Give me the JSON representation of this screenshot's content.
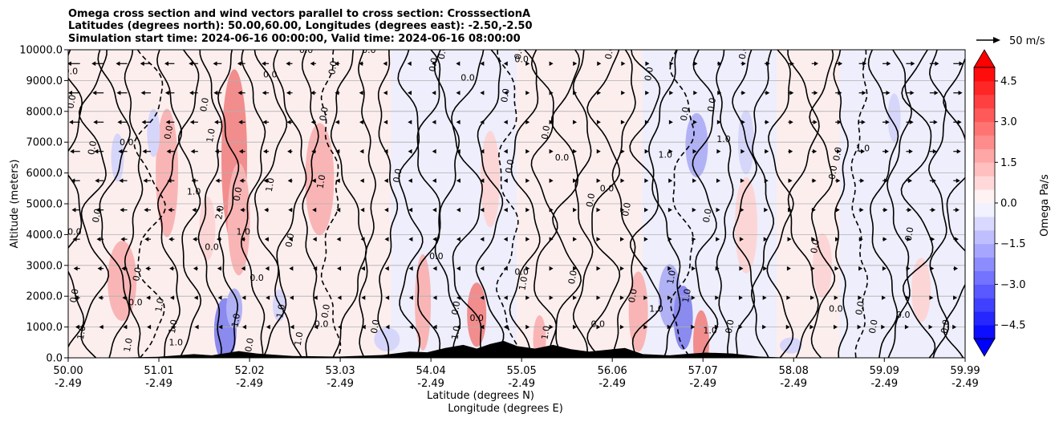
{
  "chart_data": {
    "type": "heatmap",
    "title_lines": [
      "Omega cross section and wind vectors parallel to cross section: CrosssectionA",
      "Latitudes (degrees north): 50.00,60.00, Longitudes (degrees east): -2.50,-2.50",
      "Simulation start time: 2024-06-16 00:00:00, Valid time: 2024-06-16 08:00:00"
    ],
    "ylabel": "Altitude (meters)",
    "xlabel": "Latitude (degrees N)",
    "xlabel2": "Longitude (degrees E)",
    "ylim": [
      0,
      10000
    ],
    "xlim": [
      50.0,
      59.99
    ],
    "y_ticks": [
      {
        "value": 0,
        "label": "0.0"
      },
      {
        "value": 1000,
        "label": "1000.0"
      },
      {
        "value": 2000,
        "label": "2000.0"
      },
      {
        "value": 3000,
        "label": "3000.0"
      },
      {
        "value": 4000,
        "label": "4000.0"
      },
      {
        "value": 5000,
        "label": "5000.0"
      },
      {
        "value": 6000,
        "label": "6000.0"
      },
      {
        "value": 7000,
        "label": "7000.0"
      },
      {
        "value": 8000,
        "label": "8000.0"
      },
      {
        "value": 9000,
        "label": "9000.0"
      },
      {
        "value": 10000,
        "label": "10000.0"
      }
    ],
    "x_ticks": [
      {
        "value": 50.0,
        "lat": "50.00",
        "lon": "-2.49"
      },
      {
        "value": 51.01,
        "lat": "51.01",
        "lon": "-2.49"
      },
      {
        "value": 52.02,
        "lat": "52.02",
        "lon": "-2.49"
      },
      {
        "value": 53.03,
        "lat": "53.03",
        "lon": "-2.49"
      },
      {
        "value": 54.04,
        "lat": "54.04",
        "lon": "-2.49"
      },
      {
        "value": 55.05,
        "lat": "55.05",
        "lon": "-2.49"
      },
      {
        "value": 56.06,
        "lat": "56.06",
        "lon": "-2.49"
      },
      {
        "value": 57.07,
        "lat": "57.07",
        "lon": "-2.49"
      },
      {
        "value": 58.08,
        "lat": "58.08",
        "lon": "-2.49"
      },
      {
        "value": 59.09,
        "lat": "59.09",
        "lon": "-2.49"
      },
      {
        "value": 59.99,
        "lat": "59.99",
        "lon": "-2.49"
      }
    ],
    "grid": "horizontal",
    "colorbar": {
      "label": "Omega Pa/s",
      "range": [
        -5.0,
        5.0
      ],
      "ticks": [
        {
          "value": 4.5,
          "label": "4.5"
        },
        {
          "value": 3.0,
          "label": "3.0"
        },
        {
          "value": 1.5,
          "label": "1.5"
        },
        {
          "value": 0.0,
          "label": "0.0"
        },
        {
          "value": -1.5,
          "label": "−1.5"
        },
        {
          "value": -3.0,
          "label": "−3.0"
        },
        {
          "value": -4.5,
          "label": "−4.5"
        }
      ],
      "levels": 20,
      "colormap": "bwr",
      "extend": "both"
    },
    "quiver_key": {
      "label": "50 m/s",
      "speed": 50
    },
    "contour_labels": [
      {
        "text": "0.0",
        "x": 50.03,
        "y": 9200
      },
      {
        "text": "0.0",
        "x": 50.07,
        "y": 8300
      },
      {
        "text": "0.0",
        "x": 50.3,
        "y": 6800
      },
      {
        "text": "0.0",
        "x": 50.07,
        "y": 4000
      },
      {
        "text": "0.0",
        "x": 50.1,
        "y": 2000
      },
      {
        "text": "1.0",
        "x": 50.18,
        "y": 800
      },
      {
        "text": "0.0",
        "x": 50.65,
        "y": 6900
      },
      {
        "text": "0.0",
        "x": 50.35,
        "y": 4600
      },
      {
        "text": "0.0",
        "x": 50.8,
        "y": 2700
      },
      {
        "text": "0.0",
        "x": 50.75,
        "y": 1700
      },
      {
        "text": "1.0",
        "x": 50.7,
        "y": 400
      },
      {
        "text": "0.0",
        "x": 51.15,
        "y": 7300
      },
      {
        "text": "1.0",
        "x": 51.4,
        "y": 5300
      },
      {
        "text": "1.0",
        "x": 51.05,
        "y": 1700
      },
      {
        "text": "1.0",
        "x": 51.2,
        "y": 1000
      },
      {
        "text": "1.0",
        "x": 51.2,
        "y": 400
      },
      {
        "text": "0.0",
        "x": 51.55,
        "y": 8200
      },
      {
        "text": "1.0",
        "x": 51.62,
        "y": 7200
      },
      {
        "text": "0.0",
        "x": 51.6,
        "y": 3500
      },
      {
        "text": "2.0",
        "x": 51.72,
        "y": 4700
      },
      {
        "text": "0.0",
        "x": 51.92,
        "y": 5300
      },
      {
        "text": "1.0",
        "x": 51.95,
        "y": 4000
      },
      {
        "text": "1.0",
        "x": 51.9,
        "y": 1200
      },
      {
        "text": "0.0",
        "x": 52.05,
        "y": 400
      },
      {
        "text": "0.0",
        "x": 52.25,
        "y": 9100
      },
      {
        "text": "1.0",
        "x": 52.28,
        "y": 5600
      },
      {
        "text": "0.0",
        "x": 52.5,
        "y": 3800
      },
      {
        "text": "0.0",
        "x": 52.1,
        "y": 2500
      },
      {
        "text": "1.0",
        "x": 52.4,
        "y": 1500
      },
      {
        "text": "1.0",
        "x": 52.6,
        "y": 600
      },
      {
        "text": "0.0",
        "x": 52.65,
        "y": 9900
      },
      {
        "text": "0.0",
        "x": 52.88,
        "y": 7900
      },
      {
        "text": "1.0",
        "x": 52.85,
        "y": 5700
      },
      {
        "text": "0.0",
        "x": 52.82,
        "y": 1000
      },
      {
        "text": "0.0",
        "x": 52.9,
        "y": 1500
      },
      {
        "text": "0.0",
        "x": 52.98,
        "y": 9400
      },
      {
        "text": "0.0",
        "x": 53.35,
        "y": 9900
      },
      {
        "text": "0.0",
        "x": 53.45,
        "y": 1000
      },
      {
        "text": "0.0",
        "x": 53.7,
        "y": 5900
      },
      {
        "text": "0.0",
        "x": 54.1,
        "y": 3200
      },
      {
        "text": "0.0",
        "x": 54.2,
        "y": 9900
      },
      {
        "text": "0.0",
        "x": 54.1,
        "y": 9500
      },
      {
        "text": "0.0",
        "x": 54.45,
        "y": 9000
      },
      {
        "text": "0.0",
        "x": 54.35,
        "y": 1600
      },
      {
        "text": "1.0",
        "x": 54.35,
        "y": 800
      },
      {
        "text": "0.0",
        "x": 54.55,
        "y": 1200
      },
      {
        "text": "0.0",
        "x": 54.9,
        "y": 8500
      },
      {
        "text": "0.0",
        "x": 54.95,
        "y": 6200
      },
      {
        "text": "0.0",
        "x": 55.05,
        "y": 2700
      },
      {
        "text": "1.0",
        "x": 55.1,
        "y": 2400
      },
      {
        "text": "0.0",
        "x": 55.35,
        "y": 7300
      },
      {
        "text": "0.0",
        "x": 55.5,
        "y": 6400
      },
      {
        "text": "1.0",
        "x": 55.35,
        "y": 800
      },
      {
        "text": "0.0",
        "x": 55.05,
        "y": 9900
      },
      {
        "text": "0.0",
        "x": 55.05,
        "y": 9600
      },
      {
        "text": "0.0",
        "x": 56.06,
        "y": 9900
      },
      {
        "text": "0.0",
        "x": 55.85,
        "y": 5100
      },
      {
        "text": "0.0",
        "x": 56.0,
        "y": 5400
      },
      {
        "text": "0.0",
        "x": 56.25,
        "y": 4800
      },
      {
        "text": "0.0",
        "x": 55.65,
        "y": 2600
      },
      {
        "text": "0.0",
        "x": 55.9,
        "y": 1000
      },
      {
        "text": "0.0",
        "x": 56.32,
        "y": 2000
      },
      {
        "text": "0.0",
        "x": 56.5,
        "y": 9200
      },
      {
        "text": "1.0",
        "x": 56.65,
        "y": 6500
      },
      {
        "text": "1.0",
        "x": 56.75,
        "y": 2600
      },
      {
        "text": "1.0",
        "x": 56.92,
        "y": 2000
      },
      {
        "text": "1.0",
        "x": 56.55,
        "y": 1500
      },
      {
        "text": "0.0",
        "x": 56.9,
        "y": 7900
      },
      {
        "text": "0.0",
        "x": 57.2,
        "y": 8200
      },
      {
        "text": "1.0",
        "x": 57.3,
        "y": 7000
      },
      {
        "text": "0.0",
        "x": 57.15,
        "y": 4600
      },
      {
        "text": "0.0",
        "x": 57.4,
        "y": 1000
      },
      {
        "text": "1.0",
        "x": 57.15,
        "y": 800
      },
      {
        "text": "0.0",
        "x": 57.55,
        "y": 9900
      },
      {
        "text": "0.0",
        "x": 58.6,
        "y": 6600
      },
      {
        "text": "1.0",
        "x": 58.85,
        "y": 6700
      },
      {
        "text": "0.0",
        "x": 58.55,
        "y": 6000
      },
      {
        "text": "0.0",
        "x": 58.35,
        "y": 3600
      },
      {
        "text": "0.0",
        "x": 58.55,
        "y": 1500
      },
      {
        "text": "0.0",
        "x": 58.85,
        "y": 1600
      },
      {
        "text": "0.0",
        "x": 59.0,
        "y": 1000
      },
      {
        "text": "0.0",
        "x": 59.3,
        "y": 1300
      },
      {
        "text": "0.0",
        "x": 59.4,
        "y": 4000
      },
      {
        "text": "0.0",
        "x": 59.8,
        "y": 1000
      }
    ]
  }
}
